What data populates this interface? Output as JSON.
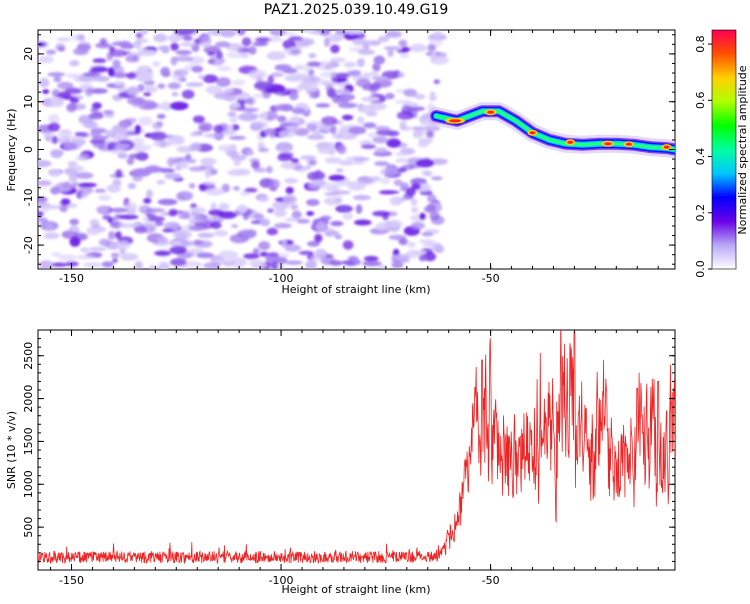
{
  "figure": {
    "title": "PAZ1.2025.039.10.49.G19"
  },
  "chart_data": [
    {
      "type": "heatmap",
      "xlabel": "Height of straight line (km)",
      "ylabel": "Frequency (Hz)",
      "xlim": [
        -158,
        -6
      ],
      "ylim": [
        -25,
        25
      ],
      "xticks": [
        -150,
        -100,
        -50
      ],
      "yticks": [
        -20,
        -10,
        0,
        10,
        20
      ],
      "noise_region": [
        -158,
        -62
      ],
      "signal_ridge": {
        "x": [
          -63,
          -58,
          -55,
          -52,
          -48,
          -44,
          -40,
          -36,
          -32,
          -28,
          -24,
          -20,
          -16,
          -12,
          -8,
          -6
        ],
        "y": [
          7,
          6,
          7,
          8,
          8,
          6,
          3.5,
          2,
          1.2,
          1,
          1.2,
          1.2,
          1,
          0.5,
          0.3,
          0
        ]
      },
      "colorbar": {
        "label": "Normalized spectral amplitude",
        "range": [
          0,
          0.85
        ],
        "ticks": [
          0.0,
          0.2,
          0.4,
          0.6,
          0.8
        ],
        "tick_labels": [
          "0.0",
          "0.2",
          "0.4",
          "0.6",
          "0.8"
        ],
        "colors": [
          "#ffffff",
          "#b8a8f8",
          "#6a00e8",
          "#0000ff",
          "#00c8ff",
          "#00ffa0",
          "#00ff00",
          "#b0ff00",
          "#ffd000",
          "#ff5000",
          "#ff0050"
        ]
      }
    },
    {
      "type": "line",
      "xlabel": "Height of straight line (km)",
      "ylabel": "SNR (10 * v/v)",
      "xlim": [
        -158,
        -6
      ],
      "ylim": [
        0,
        2800
      ],
      "xticks": [
        -150,
        -100,
        -50
      ],
      "yticks": [
        500,
        1000,
        1500,
        2000,
        2500
      ],
      "color": "#ee2222",
      "envelope": {
        "x": [
          -158,
          -70,
          -62,
          -60,
          -58,
          -56,
          -54,
          -52,
          -50,
          -48,
          -46,
          -44,
          -42,
          -40,
          -38,
          -36,
          -34,
          -32,
          -30,
          -28,
          -26,
          -24,
          -22,
          -20,
          -18,
          -16,
          -14,
          -12,
          -10,
          -8,
          -6
        ],
        "y": [
          150,
          150,
          170,
          350,
          700,
          1000,
          1300,
          1600,
          1700,
          1500,
          1300,
          1200,
          1300,
          1500,
          1600,
          1700,
          1800,
          2000,
          1900,
          1400,
          1500,
          1600,
          1500,
          1200,
          1100,
          1450,
          1700,
          1600,
          1500,
          1400,
          1450
        ]
      },
      "peaks": [
        {
          "x": -52,
          "y": 2450
        },
        {
          "x": -30,
          "y": 2770
        },
        {
          "x": -15,
          "y": 2120
        },
        {
          "x": -10,
          "y": 2200
        }
      ]
    }
  ]
}
